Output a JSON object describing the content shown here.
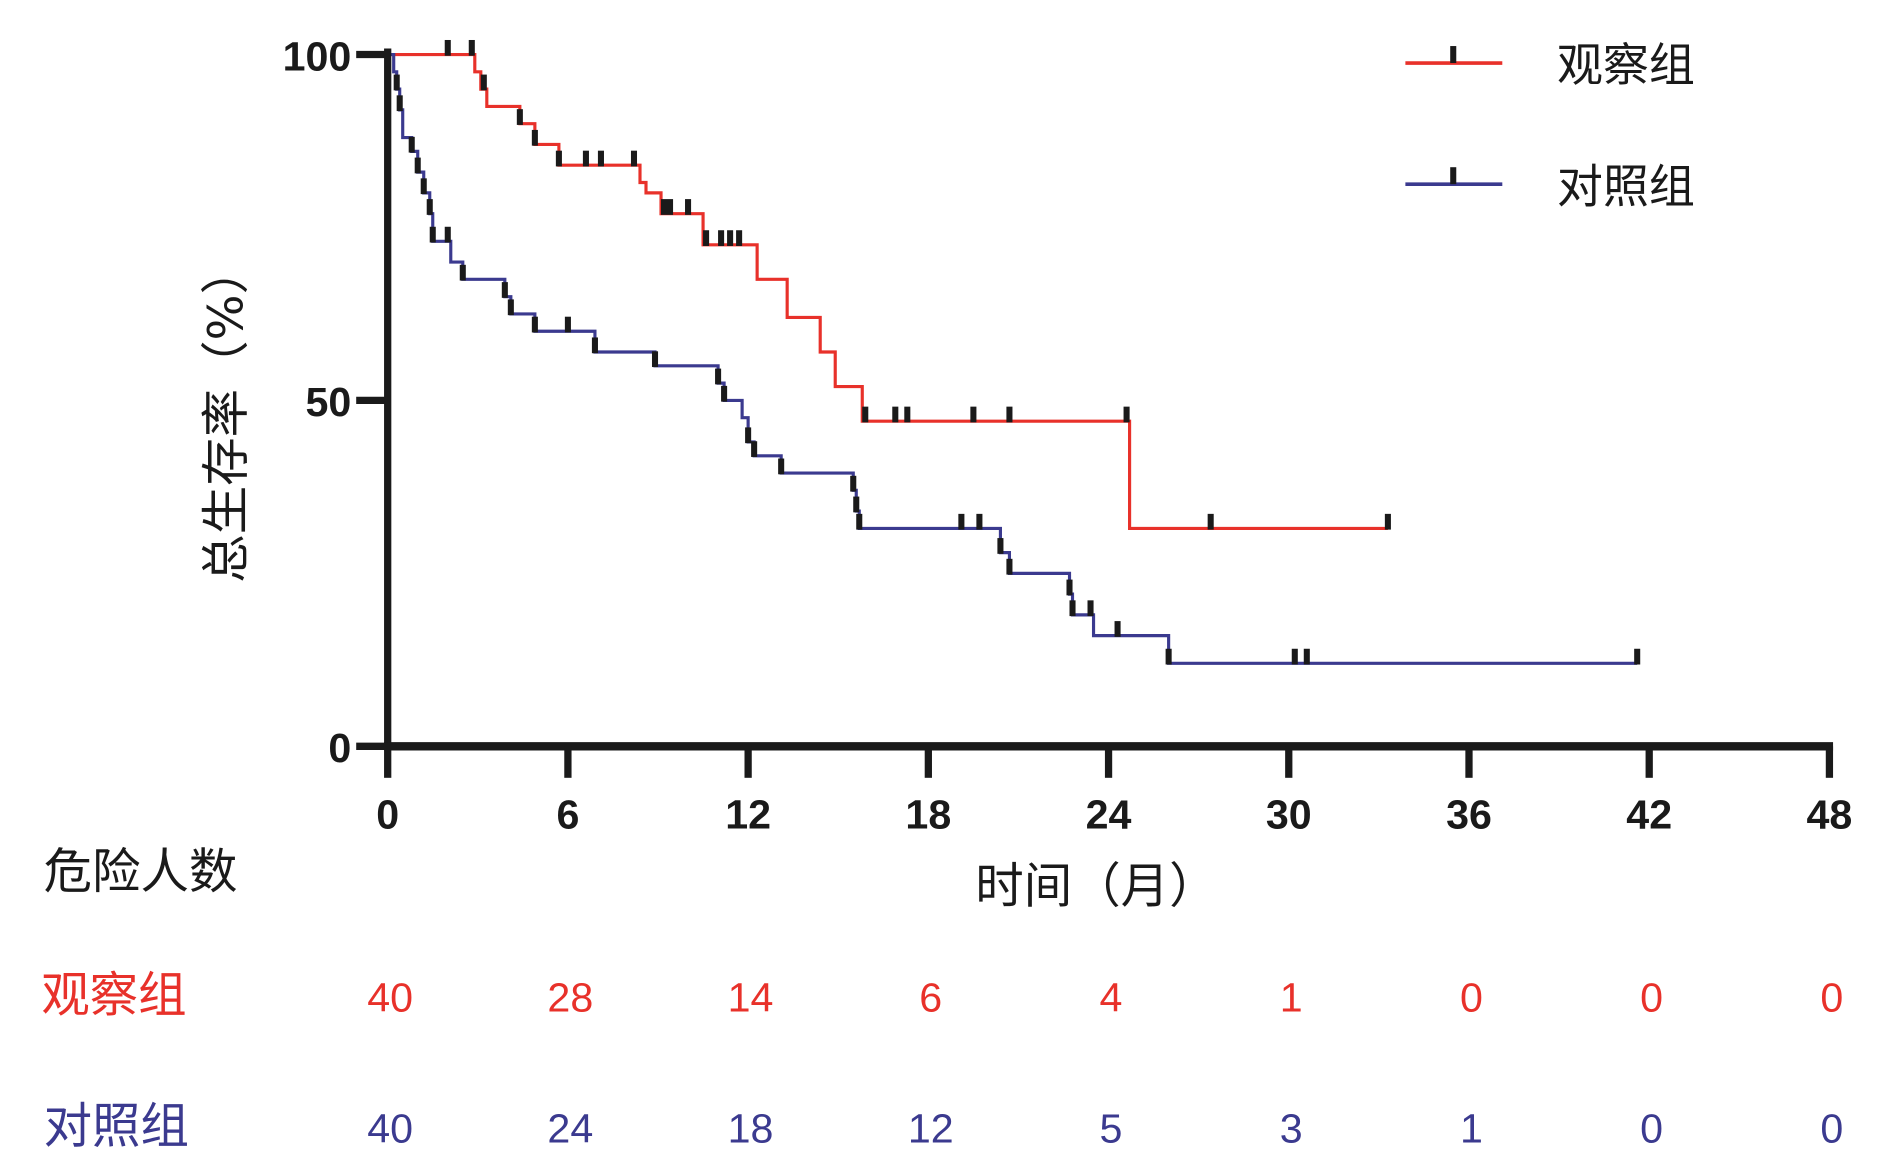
{
  "chart_data": {
    "type": "line",
    "subtype": "kaplan-meier",
    "ylabel": "总生存率（%）",
    "xlabel": "时间（月）",
    "xlim": [
      0,
      48
    ],
    "ylim": [
      0,
      100
    ],
    "xticks": [
      "0",
      "6",
      "12",
      "18",
      "24",
      "30",
      "36",
      "42",
      "48"
    ],
    "xtick_values": [
      0,
      6,
      12,
      18,
      24,
      30,
      36,
      42,
      48
    ],
    "yticks": [
      "0",
      "50",
      "100"
    ],
    "ytick_values": [
      0,
      50,
      100
    ],
    "legend_position": "top-right",
    "series": [
      {
        "name": "观察组",
        "color": "#e8312a",
        "steps": [
          [
            0,
            100
          ],
          [
            2.9,
            97.5
          ],
          [
            3.1,
            95
          ],
          [
            3.3,
            92.5
          ],
          [
            4.4,
            90
          ],
          [
            4.9,
            87
          ],
          [
            5.7,
            84
          ],
          [
            8.4,
            81.5
          ],
          [
            8.6,
            80
          ],
          [
            9.1,
            77
          ],
          [
            10.5,
            72.5
          ],
          [
            12.3,
            67.5
          ],
          [
            13.3,
            62
          ],
          [
            14.4,
            57
          ],
          [
            14.9,
            52
          ],
          [
            15.8,
            47
          ],
          [
            24.7,
            31.5
          ]
        ],
        "end": 33.3,
        "censored": [
          2.0,
          2.8,
          3.2,
          4.4,
          4.9,
          5.7,
          6.6,
          7.1,
          8.2,
          9.2,
          9.4,
          10.0,
          10.6,
          11.1,
          11.4,
          11.7,
          15.9,
          16.9,
          17.3,
          19.5,
          20.7,
          24.6,
          27.4,
          33.3
        ]
      },
      {
        "name": "对照组",
        "color": "#3b3a8f",
        "steps": [
          [
            0,
            100
          ],
          [
            0.2,
            97.5
          ],
          [
            0.3,
            95
          ],
          [
            0.4,
            92
          ],
          [
            0.5,
            88
          ],
          [
            0.8,
            86
          ],
          [
            1.0,
            83
          ],
          [
            1.2,
            80
          ],
          [
            1.4,
            77
          ],
          [
            1.5,
            73
          ],
          [
            2.1,
            70
          ],
          [
            2.5,
            67.5
          ],
          [
            3.9,
            65
          ],
          [
            4.1,
            62.5
          ],
          [
            4.9,
            60
          ],
          [
            6.9,
            57
          ],
          [
            8.9,
            55
          ],
          [
            11.0,
            52.5
          ],
          [
            11.2,
            50
          ],
          [
            11.8,
            47.5
          ],
          [
            12.0,
            44
          ],
          [
            12.2,
            42
          ],
          [
            13.1,
            39.5
          ],
          [
            15.5,
            37
          ],
          [
            15.6,
            34
          ],
          [
            15.7,
            31.5
          ],
          [
            20.4,
            28
          ],
          [
            20.7,
            25
          ],
          [
            22.7,
            22
          ],
          [
            22.8,
            19
          ],
          [
            23.5,
            16
          ],
          [
            26.0,
            12
          ]
        ],
        "end": 41.6,
        "censored": [
          0.3,
          0.4,
          0.8,
          1.0,
          1.2,
          1.4,
          1.5,
          2.0,
          2.5,
          3.9,
          4.1,
          4.9,
          6.0,
          6.9,
          8.9,
          11.0,
          11.2,
          12.0,
          12.2,
          13.1,
          15.5,
          15.6,
          15.7,
          19.1,
          19.7,
          20.4,
          20.7,
          22.7,
          22.8,
          23.4,
          24.3,
          26.0,
          30.2,
          30.6,
          41.6
        ]
      }
    ],
    "risk_table": {
      "title": "危险人数",
      "rows": [
        {
          "name": "观察组",
          "color": "#e8312a",
          "values": [
            "40",
            "28",
            "14",
            "6",
            "4",
            "1",
            "0",
            "0",
            "0"
          ]
        },
        {
          "name": "对照组",
          "color": "#3b3a8f",
          "values": [
            "40",
            "24",
            "18",
            "12",
            "5",
            "3",
            "1",
            "0",
            "0"
          ]
        }
      ]
    }
  }
}
